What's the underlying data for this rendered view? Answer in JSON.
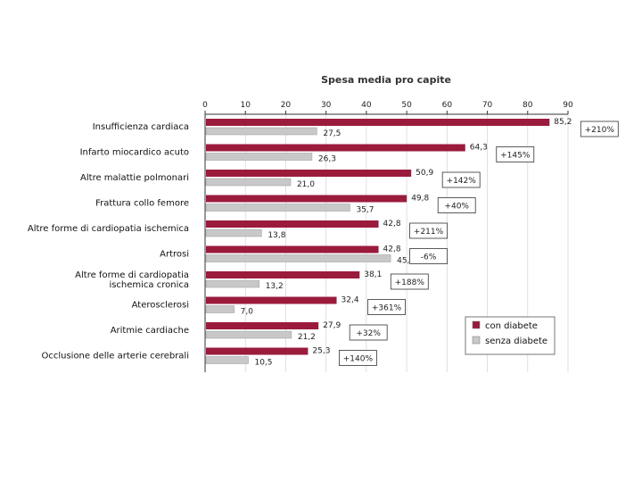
{
  "chart_data": {
    "type": "bar",
    "orientation": "horizontal",
    "title": "Spesa media pro capite",
    "xlim": [
      0,
      90
    ],
    "xticks": [
      0,
      10,
      20,
      30,
      40,
      50,
      60,
      70,
      80,
      90
    ],
    "xaxis_position": "top",
    "grid": true,
    "legend_position": "bottom-right",
    "categories": [
      "Insufficienza cardiaca",
      "Infarto miocardico acuto",
      "Altre malattie polmonari",
      "Frattura collo femore",
      "Altre forme di cardiopatia ischemica",
      "Artrosi",
      "Altre forme di cardiopatia ischemica cronica",
      "Aterosclerosi",
      "Aritmie cardiache",
      "Occlusione delle arterie cerebrali"
    ],
    "category_lines": [
      [
        "Insufficienza cardiaca"
      ],
      [
        "Infarto miocardico acuto"
      ],
      [
        "Altre malattie polmonari"
      ],
      [
        "Frattura collo femore"
      ],
      [
        "Altre forme di cardiopatia ischemica"
      ],
      [
        "Artrosi"
      ],
      [
        "Altre forme di cardiopatia",
        "ischemica cronica"
      ],
      [
        "Aterosclerosi"
      ],
      [
        "Aritmie cardiache"
      ],
      [
        "Occlusione delle arterie cerebrali"
      ]
    ],
    "series": [
      {
        "name": "con diabete",
        "color": "#9b1b3c",
        "values": [
          85.2,
          64.3,
          50.9,
          49.8,
          42.8,
          42.8,
          38.1,
          32.4,
          27.9,
          25.3
        ],
        "labels": [
          "85,2",
          "64,3",
          "50,9",
          "49,8",
          "42,8",
          "42,8",
          "38,1",
          "32,4",
          "27,9",
          "25,3"
        ]
      },
      {
        "name": "senza diabete",
        "color": "#c8c8c8",
        "values": [
          27.5,
          26.3,
          21.0,
          35.7,
          13.8,
          45.8,
          13.2,
          7.0,
          21.2,
          10.5
        ],
        "labels": [
          "27,5",
          "26,3",
          "21,0",
          "35,7",
          "13,8",
          "45,8",
          "13,2",
          "7,0",
          "21,2",
          "10,5"
        ]
      }
    ],
    "annotations": [
      "+210%",
      "+145%",
      "+142%",
      "+40%",
      "+211%",
      "-6%",
      "+188%",
      "+361%",
      "+32%",
      "+140%"
    ]
  }
}
